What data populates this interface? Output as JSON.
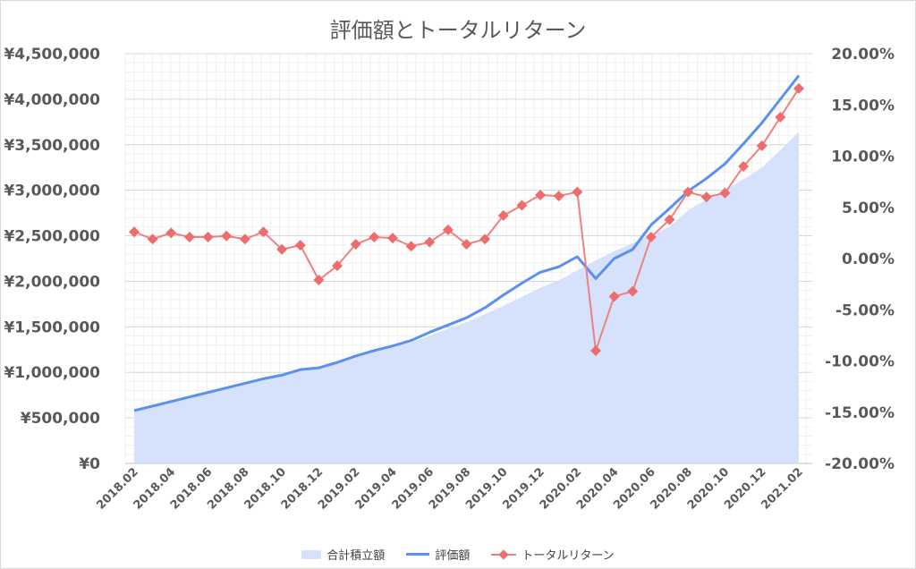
{
  "chart_data": {
    "type": "line",
    "title": "評価額とトータルリターン",
    "x": [
      "2018.02",
      "2018.03",
      "2018.04",
      "2018.05",
      "2018.06",
      "2018.07",
      "2018.08",
      "2018.09",
      "2018.10",
      "2018.11",
      "2018.12",
      "2019.01",
      "2019.02",
      "2019.03",
      "2019.04",
      "2019.05",
      "2019.06",
      "2019.07",
      "2019.08",
      "2019.09",
      "2019.10",
      "2019.11",
      "2019.12",
      "2020.01",
      "2020.02",
      "2020.03",
      "2020.04",
      "2020.05",
      "2020.06",
      "2020.07",
      "2020.08",
      "2020.09",
      "2020.10",
      "2020.11",
      "2020.12",
      "2021.01",
      "2021.02"
    ],
    "x_tick_labels": [
      "2018.02",
      "2018.04",
      "2018.06",
      "2018.08",
      "2018.10",
      "2018.12",
      "2019.02",
      "2019.04",
      "2019.06",
      "2019.08",
      "2019.10",
      "2019.12",
      "2020.02",
      "2020.04",
      "2020.06",
      "2020.08",
      "2020.10",
      "2020.12",
      "2021.02"
    ],
    "y_left": {
      "lim": [
        0,
        4500000
      ],
      "tick_labels": [
        "¥0",
        "¥500,000",
        "¥1,000,000",
        "¥1,500,000",
        "¥2,000,000",
        "¥2,500,000",
        "¥3,000,000",
        "¥3,500,000",
        "¥4,000,000",
        "¥4,500,000"
      ]
    },
    "y_right": {
      "lim": [
        -20,
        20
      ],
      "tick_labels": [
        "-20.00%",
        "-15.00%",
        "-10.00%",
        "-5.00%",
        "0.00%",
        "5.00%",
        "10.00%",
        "15.00%",
        "20.00%"
      ]
    },
    "grid": true,
    "legend_position": "bottom",
    "series": [
      {
        "name": "合計積立額",
        "type": "area",
        "axis": "left",
        "color": "#d6e2fb",
        "values": [
          570000,
          620000,
          680000,
          730000,
          780000,
          830000,
          880000,
          930000,
          970000,
          1020000,
          1060000,
          1120000,
          1180000,
          1230000,
          1280000,
          1330000,
          1400000,
          1480000,
          1550000,
          1640000,
          1730000,
          1830000,
          1930000,
          2010000,
          2120000,
          2230000,
          2330000,
          2420000,
          2510000,
          2600000,
          2780000,
          2900000,
          3000000,
          3120000,
          3250000,
          3440000,
          3640000
        ]
      },
      {
        "name": "評価額",
        "type": "line",
        "axis": "left",
        "color": "#5b8ff0",
        "values": [
          580000,
          630000,
          680000,
          730000,
          780000,
          830000,
          880000,
          930000,
          970000,
          1030000,
          1050000,
          1110000,
          1180000,
          1240000,
          1290000,
          1350000,
          1440000,
          1520000,
          1600000,
          1710000,
          1850000,
          1980000,
          2100000,
          2160000,
          2270000,
          2030000,
          2250000,
          2350000,
          2620000,
          2800000,
          2990000,
          3130000,
          3290000,
          3510000,
          3740000,
          4000000,
          4260000
        ]
      },
      {
        "name": "トータルリターン",
        "type": "line",
        "axis": "right",
        "color": "#ed6d6d",
        "marker": "diamond",
        "values": [
          2.6,
          1.9,
          2.5,
          2.1,
          2.1,
          2.2,
          1.9,
          2.6,
          0.9,
          1.3,
          -2.1,
          -0.7,
          1.4,
          2.1,
          2.0,
          1.2,
          1.6,
          2.8,
          1.4,
          1.9,
          4.2,
          5.2,
          6.2,
          6.1,
          6.5,
          -9.0,
          -3.7,
          -3.2,
          2.1,
          3.8,
          6.5,
          6.0,
          6.4,
          9.0,
          11.0,
          13.8,
          16.6
        ]
      }
    ]
  }
}
